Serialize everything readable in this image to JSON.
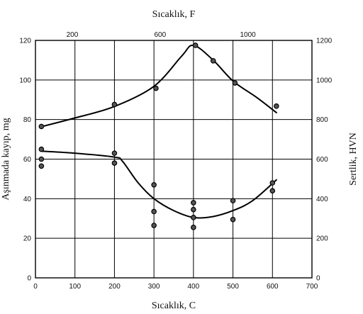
{
  "chart_data": {
    "type": "scatter",
    "title": "",
    "top_xlabel": "Sıcaklık, F",
    "xlabel": "Sıcaklık, C",
    "ylabel": "Aşınmada kayıp, mg",
    "y2label": "Sertlik, HVN",
    "xlim": [
      0,
      700
    ],
    "ylim": [
      0,
      120
    ],
    "y2lim": [
      0,
      1200
    ],
    "xticks": [
      0,
      100,
      200,
      300,
      400,
      500,
      600,
      700
    ],
    "yticks": [
      0,
      20,
      40,
      60,
      80,
      100,
      120
    ],
    "y2ticks": [
      0,
      200,
      400,
      600,
      800,
      1000,
      1200
    ],
    "top_xticks": [
      {
        "label": "200",
        "value_c": 93.3
      },
      {
        "label": "600",
        "value_c": 315.6
      },
      {
        "label": "1000",
        "value_c": 537.8
      }
    ],
    "grid": true,
    "series": [
      {
        "curve": [
          [
            15,
            764
          ],
          [
            100,
            808
          ],
          [
            200,
            866
          ],
          [
            300,
            968
          ],
          [
            370,
            1120
          ],
          [
            400,
            1175
          ],
          [
            450,
            1100
          ],
          [
            500,
            995
          ],
          [
            560,
            912
          ],
          [
            610,
            835
          ]
        ],
        "points": [
          [
            15,
            765
          ],
          [
            200,
            876
          ],
          [
            305,
            958
          ],
          [
            405,
            1175
          ],
          [
            450,
            1097
          ],
          [
            505,
            985
          ],
          [
            610,
            868
          ]
        ]
      },
      {
        "curve": [
          [
            15,
            64
          ],
          [
            100,
            63
          ],
          [
            200,
            61
          ],
          [
            220,
            59
          ],
          [
            260,
            48
          ],
          [
            300,
            40
          ],
          [
            350,
            34
          ],
          [
            400,
            30.5
          ],
          [
            450,
            31
          ],
          [
            500,
            34
          ],
          [
            550,
            39
          ],
          [
            610,
            49.5
          ]
        ],
        "points": [
          [
            15,
            65
          ],
          [
            15,
            60
          ],
          [
            15,
            56.5
          ],
          [
            200,
            63
          ],
          [
            200,
            58
          ],
          [
            300,
            47
          ],
          [
            300,
            33.5
          ],
          [
            300,
            26.5
          ],
          [
            400,
            38
          ],
          [
            400,
            34.5
          ],
          [
            400,
            30.5
          ],
          [
            400,
            25.5
          ],
          [
            500,
            39
          ],
          [
            500,
            29.5
          ],
          [
            600,
            48
          ],
          [
            600,
            44
          ]
        ]
      }
    ]
  }
}
